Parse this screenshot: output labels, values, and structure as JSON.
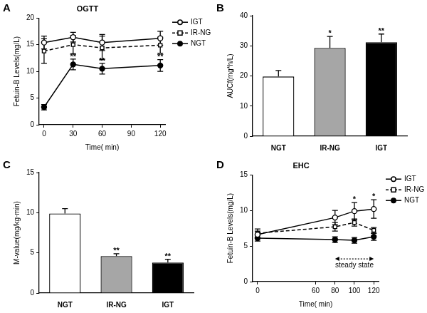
{
  "chart_data": [
    {
      "panel": "A",
      "type": "line",
      "title": "OGTT",
      "x_label": "Time( min)",
      "y_label": "Fetuin-B Levels(mg/L)",
      "x": [
        0,
        30,
        60,
        120
      ],
      "xlim": [
        -5,
        125
      ],
      "xticks": [
        0,
        30,
        60,
        90,
        120
      ],
      "ylim": [
        0,
        20
      ],
      "yticks": [
        0,
        5,
        10,
        15,
        20
      ],
      "grid": false,
      "legend": "right",
      "series": [
        {
          "name": "IGT",
          "color": "#000000",
          "marker": "circle-open",
          "line_style": "solid",
          "values": [
            15.4,
            16.4,
            15.4,
            16.2
          ],
          "errors": [
            1.2,
            0.9,
            1.5,
            1.3
          ]
        },
        {
          "name": "IR-NG",
          "color": "#000000",
          "marker": "square-open",
          "line_style": "dashed",
          "values": [
            13.8,
            15.0,
            14.4,
            14.9
          ],
          "errors": [
            2.3,
            1.7,
            2.2,
            1.5
          ]
        },
        {
          "name": "NGT",
          "color": "#000000",
          "marker": "circle",
          "line_style": "solid",
          "values": [
            3.3,
            11.3,
            10.5,
            11.1
          ],
          "errors": [
            0.5,
            1.0,
            1.0,
            1.1
          ]
        }
      ],
      "annotations": [
        {
          "text": "**",
          "x": 30,
          "y": 12.4
        },
        {
          "text": "**",
          "x": 60,
          "y": 11.6
        },
        {
          "text": "**",
          "x": 120,
          "y": 12.3
        }
      ]
    },
    {
      "panel": "B",
      "type": "bar",
      "y_label": "AUCf(mg*h/L)",
      "categories": [
        "NGT",
        "IR-NG",
        "IGT"
      ],
      "values": [
        19.8,
        29.3,
        31.2
      ],
      "errors": [
        2.0,
        3.8,
        2.7
      ],
      "colors": [
        "#ffffff",
        "#a6a6a6",
        "#000000"
      ],
      "ylim": [
        0,
        40
      ],
      "yticks": [
        0,
        10,
        20,
        30,
        40
      ],
      "grid": false,
      "annotations": [
        {
          "text": "*",
          "x": "IR-NG",
          "y": 33.4
        },
        {
          "text": "**",
          "x": "IGT",
          "y": 34.2
        }
      ]
    },
    {
      "panel": "C",
      "type": "bar",
      "y_label": "M-value(mg/kg·min)",
      "categories": [
        "NGT",
        "IR-NG",
        "IGT"
      ],
      "values": [
        9.9,
        4.6,
        3.8
      ],
      "errors": [
        0.6,
        0.3,
        0.4
      ],
      "colors": [
        "#ffffff",
        "#a6a6a6",
        "#000000"
      ],
      "ylim": [
        0,
        15
      ],
      "yticks": [
        0,
        5,
        10,
        15
      ],
      "grid": false,
      "annotations": [
        {
          "text": "**",
          "x": "IR-NG",
          "y": 5.0
        },
        {
          "text": "**",
          "x": "IGT",
          "y": 4.3
        }
      ]
    },
    {
      "panel": "D",
      "type": "line",
      "title": "EHC",
      "x_label": "Time( min)",
      "y_label": "Fetuin-B Levels(mg/L)",
      "x": [
        0,
        80,
        100,
        120
      ],
      "xlim": [
        -5,
        125
      ],
      "xticks": [
        0,
        60,
        80,
        100,
        120
      ],
      "ylim": [
        0,
        15
      ],
      "yticks": [
        0,
        5,
        10,
        15
      ],
      "grid": false,
      "legend": "right",
      "series": [
        {
          "name": "IGT",
          "color": "#000000",
          "marker": "circle-open",
          "line_style": "solid",
          "values": [
            6.6,
            9.0,
            9.9,
            10.2
          ],
          "errors": [
            0.5,
            1.0,
            1.2,
            1.3
          ]
        },
        {
          "name": "IR-NG",
          "color": "#000000",
          "marker": "square-open",
          "line_style": "dashed",
          "values": [
            6.8,
            7.7,
            8.3,
            7.2
          ],
          "errors": [
            0.6,
            0.6,
            0.5,
            0.4
          ]
        },
        {
          "name": "NGT",
          "color": "#000000",
          "marker": "circle",
          "line_style": "solid",
          "values": [
            6.1,
            5.9,
            5.8,
            6.3
          ],
          "errors": [
            0.4,
            0.4,
            0.4,
            0.5
          ]
        }
      ],
      "annotations": [
        {
          "text": "*",
          "x": 100,
          "y": 11.3
        },
        {
          "text": "*",
          "x": 120,
          "y": 11.7
        }
      ],
      "range_annotations": [
        {
          "text": "steady state",
          "x_start": 80,
          "x_end": 120,
          "y": 3.2
        }
      ]
    }
  ]
}
